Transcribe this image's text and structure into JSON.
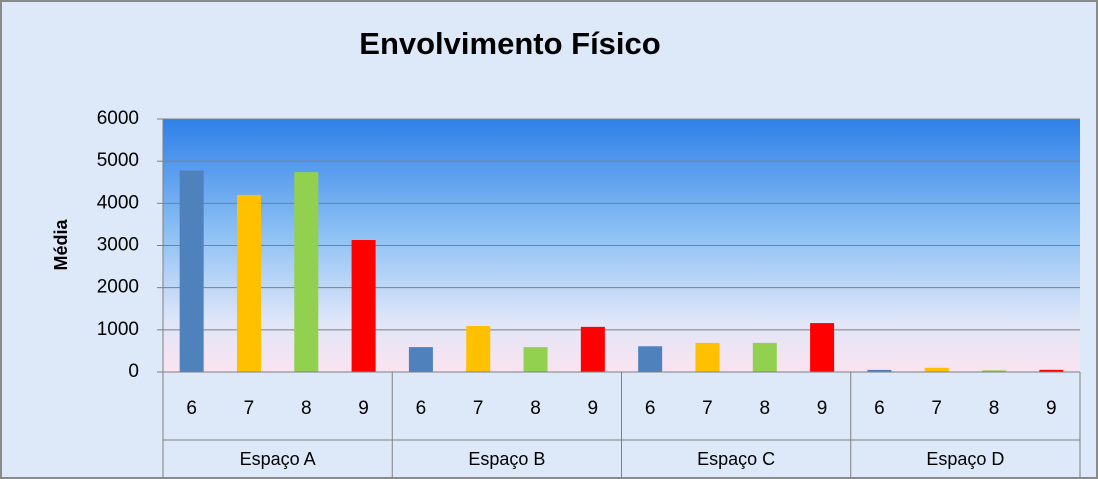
{
  "chart_data": {
    "type": "bar",
    "title": "Envolvimento Físico",
    "y_label": "Média",
    "categories": [
      "Espaço A",
      "Espaço B",
      "Espaço C",
      "Espaço D"
    ],
    "series": [
      {
        "name": "6",
        "color": "#4f81bd",
        "values": [
          4780,
          590,
          610,
          50
        ]
      },
      {
        "name": "7",
        "color": "#ffc000",
        "values": [
          4200,
          1090,
          690,
          100
        ]
      },
      {
        "name": "8",
        "color": "#92d050",
        "values": [
          4740,
          590,
          690,
          40
        ]
      },
      {
        "name": "9",
        "color": "#ff0000",
        "values": [
          3130,
          1070,
          1160,
          50
        ]
      }
    ],
    "ylim": [
      0,
      6000
    ],
    "yticks": [
      0,
      1000,
      2000,
      3000,
      4000,
      5000,
      6000
    ],
    "grid": true
  }
}
